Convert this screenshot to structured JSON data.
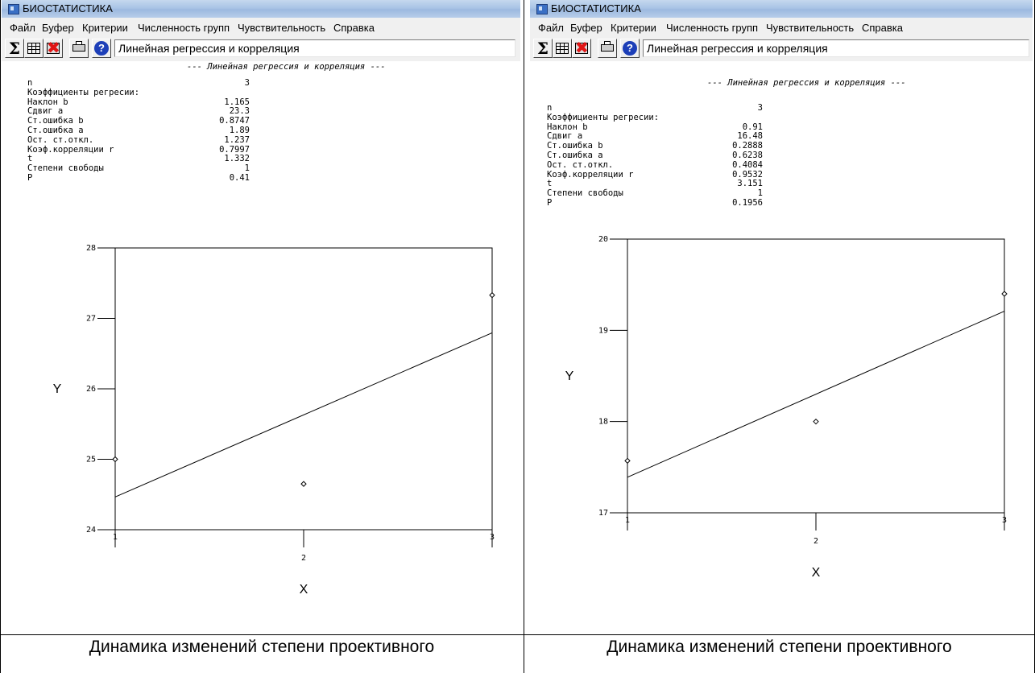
{
  "left_window": {
    "title": "БИОСТАТИСТИКА",
    "menu": [
      "Файл",
      "Буфер",
      "Критерии",
      "Численность групп",
      "Чувствительность",
      "Справка"
    ],
    "toolbar": {
      "sigma_label": "Σ",
      "help_label": "?",
      "procedure": "Линейная регрессия и корреляция"
    },
    "results": {
      "heading": "--- Линейная регрессия и корреляция ---",
      "stats": [
        {
          "label": "n",
          "value": "3"
        },
        {
          "label": "Коэффициенты регресии:",
          "value": ""
        },
        {
          "label": "Наклон b",
          "value": "1.165"
        },
        {
          "label": "Сдвиг a",
          "value": "23.3"
        },
        {
          "label": "Ст.ошибка b",
          "value": "0.8747"
        },
        {
          "label": "Ст.ошибка a",
          "value": "1.89"
        },
        {
          "label": "Ост. ст.откл.",
          "value": "1.237"
        },
        {
          "label": "Коэф.корреляции r",
          "value": "0.7997"
        },
        {
          "label": "t",
          "value": "1.332"
        },
        {
          "label": "Степени свободы",
          "value": "1"
        },
        {
          "label": "P",
          "value": "0.41"
        }
      ]
    }
  },
  "right_window": {
    "title": "БИОСТАТИСТИКА",
    "menu": [
      "Файл",
      "Буфер",
      "Критерии",
      "Численность групп",
      "Чувствительность",
      "Справка"
    ],
    "toolbar": {
      "sigma_label": "Σ",
      "help_label": "?",
      "procedure": "Линейная регрессия и корреляция"
    },
    "results": {
      "heading": "--- Линейная регрессия и корреляция ---",
      "stats": [
        {
          "label": "n",
          "value": "3"
        },
        {
          "label": "Коэффициенты регресии:",
          "value": ""
        },
        {
          "label": "Наклон b",
          "value": "0.91"
        },
        {
          "label": "Сдвиг a",
          "value": "16.48"
        },
        {
          "label": "Ст.ошибка b",
          "value": "0.2888"
        },
        {
          "label": "Ст.ошибка a",
          "value": "0.6238"
        },
        {
          "label": "Ост. ст.откл.",
          "value": "0.4084"
        },
        {
          "label": "Коэф.корреляции r",
          "value": "0.9532"
        },
        {
          "label": "t",
          "value": "3.151"
        },
        {
          "label": "Степени свободы",
          "value": "1"
        },
        {
          "label": "P",
          "value": "0.1956"
        }
      ]
    }
  },
  "captions": [
    "Динамика изменений степени проективного",
    "Динамика изменений степени проективного"
  ],
  "chart_data": [
    {
      "type": "scatter",
      "xlabel": "X",
      "ylabel": "Y",
      "xlim": [
        1,
        3
      ],
      "ylim": [
        24,
        28
      ],
      "xticks": [
        1,
        2,
        3
      ],
      "yticks": [
        24,
        25,
        26,
        27,
        28
      ],
      "points": [
        {
          "x": 1,
          "y": 25.0
        },
        {
          "x": 2,
          "y": 24.65
        },
        {
          "x": 3,
          "y": 27.33
        }
      ],
      "regression_line": {
        "slope": 1.165,
        "intercept": 23.3
      },
      "grid": false
    },
    {
      "type": "scatter",
      "xlabel": "X",
      "ylabel": "Y",
      "xlim": [
        1,
        3
      ],
      "ylim": [
        17,
        20
      ],
      "xticks": [
        1,
        2,
        3
      ],
      "yticks": [
        17,
        18,
        19,
        20
      ],
      "points": [
        {
          "x": 1,
          "y": 17.57
        },
        {
          "x": 2,
          "y": 18.0
        },
        {
          "x": 3,
          "y": 19.4
        }
      ],
      "regression_line": {
        "slope": 0.91,
        "intercept": 16.48
      },
      "grid": false
    }
  ]
}
